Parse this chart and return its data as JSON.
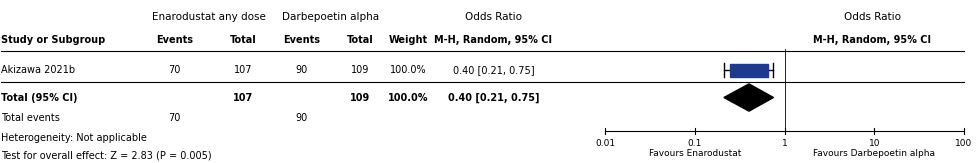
{
  "title_enaro": "Enarodustat any dose",
  "title_darbe": "Darbepoetin alpha",
  "title_or": "Odds Ratio",
  "study": "Akizawa 2021b",
  "enaro_events": 70,
  "enaro_total": 107,
  "darbe_events": 90,
  "darbe_total": 109,
  "weight": "100.0%",
  "or_text": "0.40 [0.21, 0.75]",
  "or_val": 0.4,
  "or_lo": 0.21,
  "or_hi": 0.75,
  "total_label": "Total (95% CI)",
  "total_enaro": 107,
  "total_darbe": 109,
  "total_weight": "100.0%",
  "total_or_text": "0.40 [0.21, 0.75]",
  "total_events_enaro": 70,
  "total_events_darbe": 90,
  "heterogeneity_text": "Heterogeneity: Not applicable",
  "test_text": "Test for overall effect: Z = 2.83 (P = 0.005)",
  "favours_left": "Favours Enarodustat",
  "favours_right": "Favours Darbepoetin alpha",
  "axis_ticks": [
    0.01,
    0.1,
    1,
    10,
    100
  ],
  "axis_labels": [
    "0.01",
    "0.1",
    "1",
    "10",
    "100"
  ],
  "square_color": "#1f3a8a",
  "diamond_color": "#000000",
  "ci_line_color": "#000000",
  "bg_color": "#ffffff",
  "font_size": 7,
  "header_font_size": 7.5
}
